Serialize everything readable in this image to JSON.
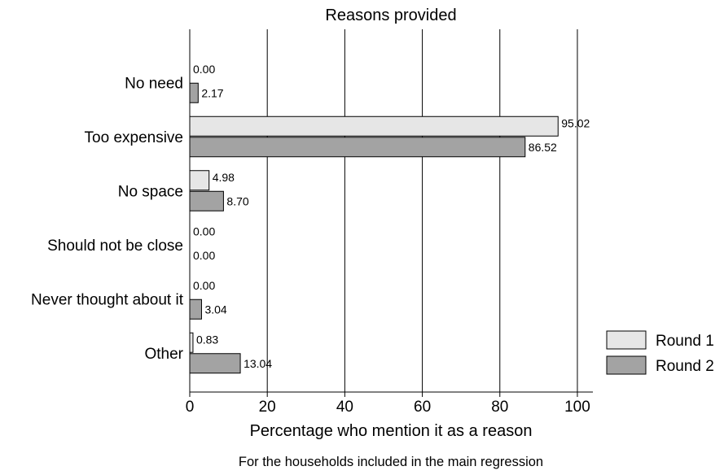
{
  "chart_data": {
    "type": "bar",
    "orientation": "horizontal",
    "title": "Reasons provided",
    "xlabel": "Percentage who mention it as a reason",
    "note": "For the households included in the main regression",
    "categories": [
      "No need",
      "Too expensive",
      "No space",
      "Should not be close",
      "Never thought about it",
      "Other"
    ],
    "series": [
      {
        "name": "Round 1",
        "color": "#e6e6e6",
        "values": [
          0.0,
          95.02,
          4.98,
          0.0,
          0.0,
          0.83
        ],
        "labels": [
          "0.00",
          "95.02",
          "4.98",
          "0.00",
          "0.00",
          "0.83"
        ]
      },
      {
        "name": "Round 2",
        "color": "#a3a3a3",
        "values": [
          2.17,
          86.52,
          8.7,
          0.0,
          3.04,
          13.04
        ],
        "labels": [
          "2.17",
          "86.52",
          "8.70",
          "0.00",
          "3.04",
          "13.04"
        ]
      }
    ],
    "xlim": [
      0,
      104
    ],
    "xticks": [
      0,
      20,
      40,
      60,
      80,
      100
    ],
    "xtick_labels": [
      "0",
      "20",
      "40",
      "60",
      "80",
      "100"
    ],
    "grid": true,
    "legend_position": "right"
  }
}
